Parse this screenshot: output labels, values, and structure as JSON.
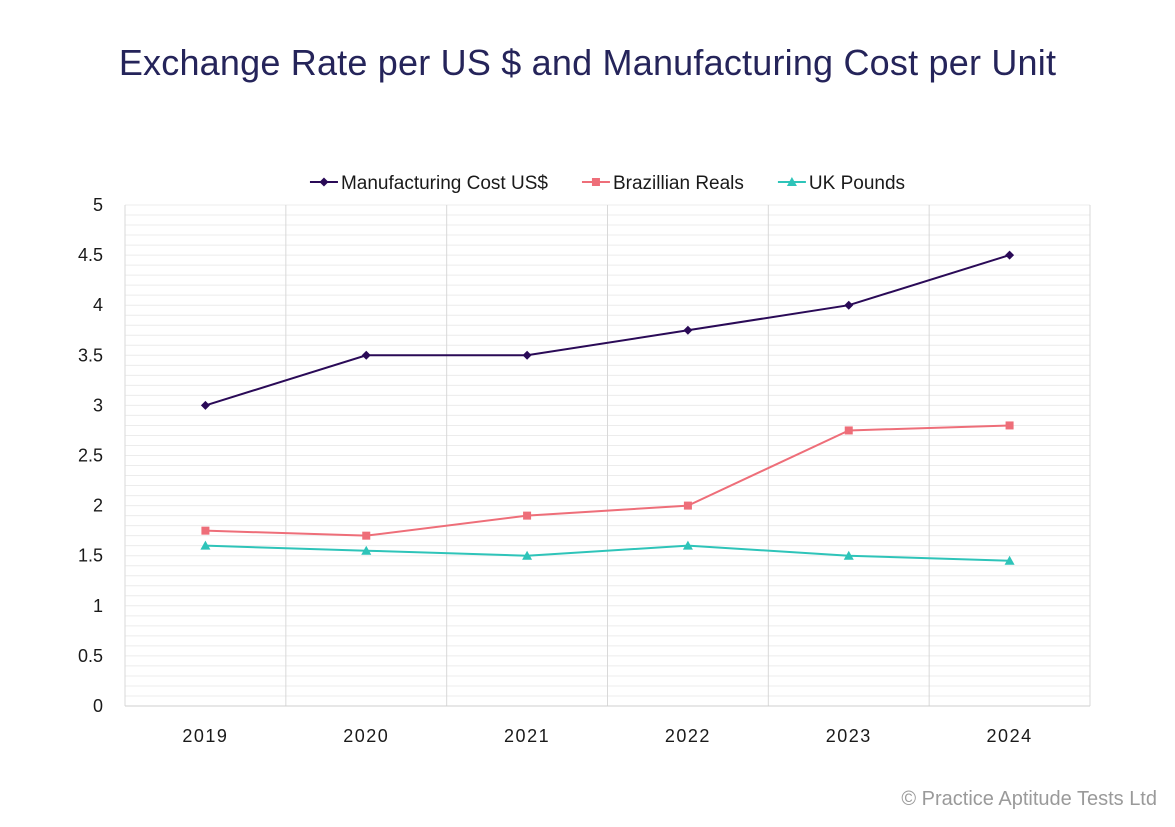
{
  "chart_data": {
    "type": "line",
    "title": "Exchange Rate per US $ and Manufacturing Cost per Unit",
    "categories": [
      "2019",
      "2020",
      "2021",
      "2022",
      "2023",
      "2024"
    ],
    "ylim": [
      0,
      5
    ],
    "yticks": [
      "0",
      "0.5",
      "1",
      "1.5",
      "2",
      "2.5",
      "3",
      "3.5",
      "4",
      "4.5",
      "5"
    ],
    "ytick_values": [
      0,
      0.5,
      1,
      1.5,
      2,
      2.5,
      3,
      3.5,
      4,
      4.5,
      5
    ],
    "xlabel": "",
    "ylabel": "",
    "grid": true,
    "legend_position": "top",
    "series": [
      {
        "name": "Manufacturing Cost US$",
        "values": [
          3.0,
          3.5,
          3.5,
          3.75,
          4.0,
          4.5
        ],
        "color": "#2a0a57",
        "marker": "diamond"
      },
      {
        "name": "Brazillian Reals",
        "values": [
          1.75,
          1.7,
          1.9,
          2.0,
          2.75,
          2.8
        ],
        "color": "#ee6e79",
        "marker": "square"
      },
      {
        "name": "UK Pounds",
        "values": [
          1.6,
          1.55,
          1.5,
          1.6,
          1.5,
          1.45
        ],
        "color": "#2ec4b9",
        "marker": "triangle"
      }
    ]
  },
  "footer": {
    "copyright": "© Practice Aptitude Tests Ltd"
  }
}
